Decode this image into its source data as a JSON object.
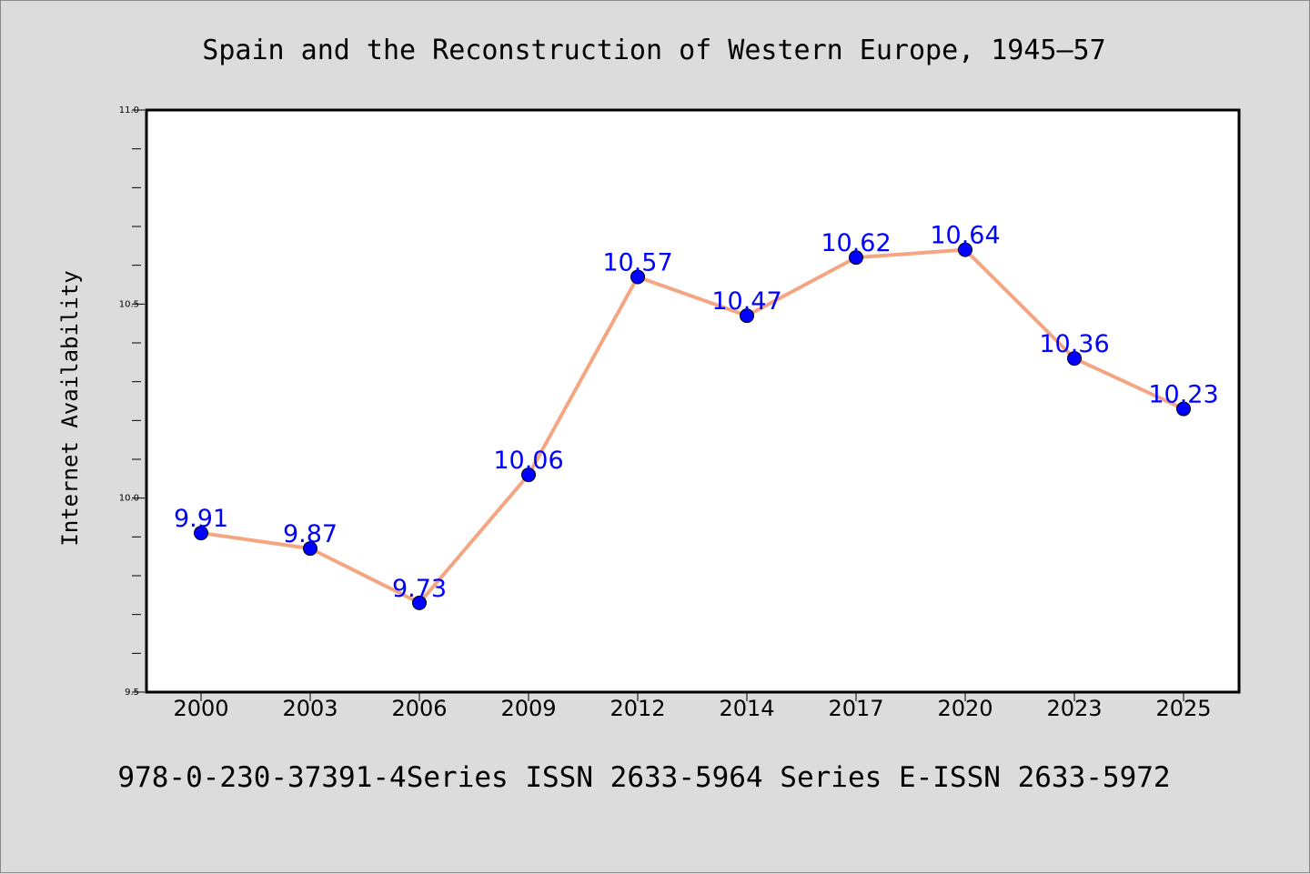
{
  "chart_data": {
    "type": "line",
    "title": "Spain and the Reconstruction of Western Europe, 1945–57",
    "xlabel": "",
    "ylabel": "Internet Availability",
    "categories": [
      "2000",
      "2003",
      "2006",
      "2009",
      "2012",
      "2014",
      "2017",
      "2020",
      "2023",
      "2025"
    ],
    "series": [
      {
        "values": [
          9.91,
          9.87,
          9.73,
          10.06,
          10.57,
          10.47,
          10.62,
          10.64,
          10.36,
          10.23
        ],
        "labels": [
          "9.91",
          "9.87",
          "9.73",
          "10.06",
          "10.57",
          "10.47",
          "10.62",
          "10.64",
          "10.36",
          "10.23"
        ]
      }
    ],
    "ylim": [
      9.5,
      11.0
    ],
    "yticks": [
      9.5,
      10.0,
      10.5,
      11.0
    ],
    "ytick_labels": [
      "9.5",
      "10.0",
      "10.5",
      "11.0"
    ],
    "grid": false,
    "colors": {
      "line": "#f4a582",
      "marker": "#0000ff",
      "label": "#0000ff",
      "plot_background": "#ffffff",
      "page_background": "#dcdcdc"
    }
  },
  "footer": "978-0-230-37391-4Series ISSN 2633-5964 Series E-ISSN 2633-5972"
}
